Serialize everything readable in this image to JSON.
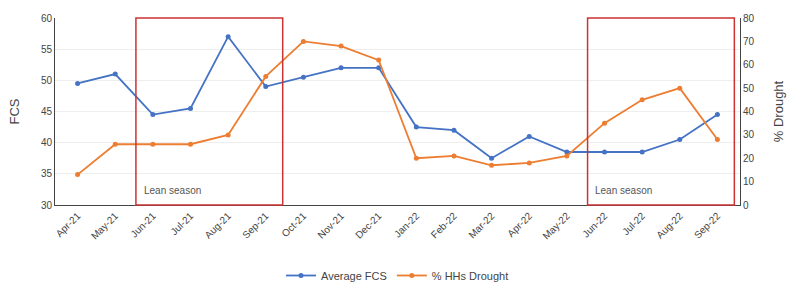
{
  "chart_data": {
    "type": "line",
    "categories": [
      "Apr-21",
      "May-21",
      "Jun-21",
      "Jul-21",
      "Aug-21",
      "Sep-21",
      "Oct-21",
      "Nov-21",
      "Dec-21",
      "Jan-22",
      "Feb-22",
      "Mar-22",
      "Apr-22",
      "May-22",
      "Jun-22",
      "Jul-22",
      "Aug-22",
      "Sep-22"
    ],
    "series": [
      {
        "name": "Average FCS",
        "color": "#4472c4",
        "marker": "circle",
        "values": [
          49.5,
          51,
          44.5,
          45.5,
          57,
          49,
          50.5,
          52,
          52,
          42.5,
          42,
          37.5,
          41,
          38.5,
          38.5,
          38.5,
          40.5,
          44.5
        ]
      },
      {
        "name": "% HHs Drought",
        "color": "#ed7d31",
        "marker": "circle",
        "axis": "y2",
        "values": [
          13,
          26,
          26,
          26,
          30,
          55,
          70,
          68,
          62,
          20,
          21,
          17,
          18,
          21,
          35,
          45,
          50,
          28
        ]
      }
    ],
    "ylabel": "FCS",
    "y2label": "% Drought",
    "ylim": [
      30,
      60
    ],
    "yticks": [
      30,
      35,
      40,
      45,
      50,
      55,
      60
    ],
    "y2lim": [
      0,
      80
    ],
    "y2ticks": [
      0,
      10,
      20,
      30,
      40,
      50,
      60,
      70,
      80
    ],
    "grid": true,
    "legend": "bottom",
    "annotations": [
      {
        "text": "Lean season",
        "from": "Jun-21",
        "to": "Sep-21",
        "color": "#cc3333"
      },
      {
        "text": "Lean season",
        "from": "Jun-22",
        "to": "Sep-22",
        "color": "#cc3333"
      }
    ]
  }
}
